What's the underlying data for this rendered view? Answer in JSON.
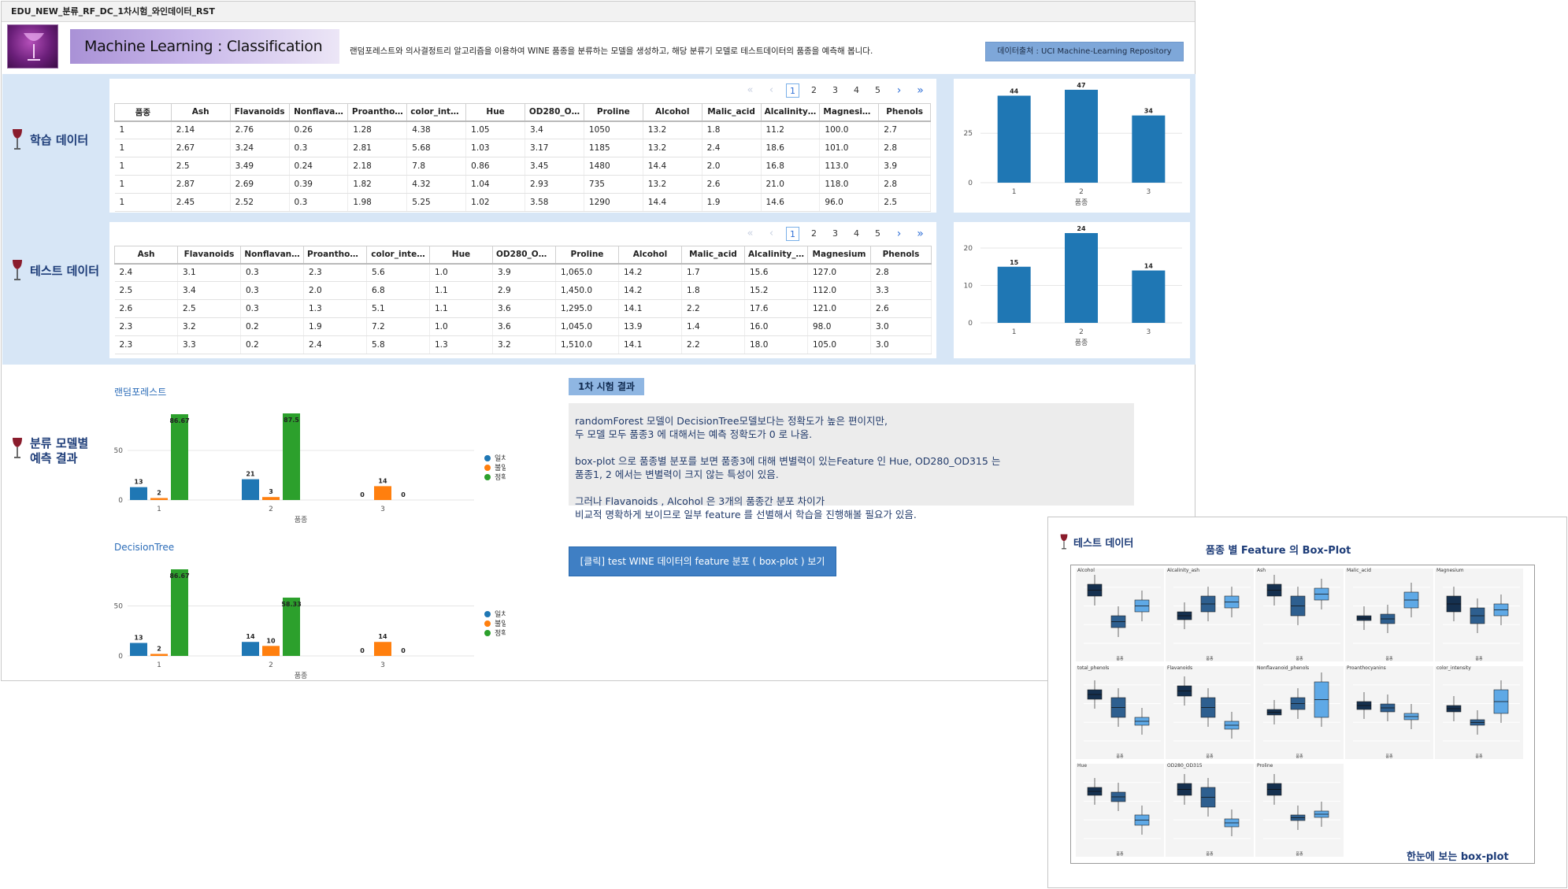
{
  "window": {
    "title": "EDU_NEW_분류_RF_DC_1차시험_와인데이터_RST"
  },
  "header": {
    "banner_text": "Machine Learning :   Classification",
    "description": "랜덤포레스트와 의사결정트리 알고리즘을 이용하여 WINE 품종을 분류하는 모델을 생성하고, 해당 분류기 모델로 테스트데이터의 품종을 예측해 봅니다.",
    "source_button": "데이터출처 : UCI Machine-Learning Repository"
  },
  "train": {
    "label": "학습 데이터",
    "pager": {
      "first": "«",
      "prev": "‹",
      "pages": [
        "1",
        "2",
        "3",
        "4",
        "5"
      ],
      "next": "›",
      "last": "»"
    },
    "columns": [
      "품종",
      "Ash",
      "Flavanoids",
      "Nonflava…",
      "Proantho…",
      "color_inte…",
      "Hue",
      "OD280_O…",
      "Proline",
      "Alcohol",
      "Malic_acid",
      "Alcalinity…",
      "Magnesium",
      "Phenols"
    ],
    "rows": [
      [
        "1",
        "2.14",
        "2.76",
        "0.26",
        "1.28",
        "4.38",
        "1.05",
        "3.4",
        "1050",
        "13.2",
        "1.8",
        "11.2",
        "100.0",
        "2.7"
      ],
      [
        "1",
        "2.67",
        "3.24",
        "0.3",
        "2.81",
        "5.68",
        "1.03",
        "3.17",
        "1185",
        "13.2",
        "2.4",
        "18.6",
        "101.0",
        "2.8"
      ],
      [
        "1",
        "2.5",
        "3.49",
        "0.24",
        "2.18",
        "7.8",
        "0.86",
        "3.45",
        "1480",
        "14.4",
        "2.0",
        "16.8",
        "113.0",
        "3.9"
      ],
      [
        "1",
        "2.87",
        "2.69",
        "0.39",
        "1.82",
        "4.32",
        "1.04",
        "2.93",
        "735",
        "13.2",
        "2.6",
        "21.0",
        "118.0",
        "2.8"
      ],
      [
        "1",
        "2.45",
        "2.52",
        "0.3",
        "1.98",
        "5.25",
        "1.02",
        "3.58",
        "1290",
        "14.4",
        "1.9",
        "14.6",
        "96.0",
        "2.5"
      ]
    ]
  },
  "test": {
    "label": "테스트 데이터",
    "pager": {
      "first": "«",
      "prev": "‹",
      "pages": [
        "1",
        "2",
        "3",
        "4",
        "5"
      ],
      "next": "›",
      "last": "»"
    },
    "columns": [
      "Ash",
      "Flavanoids",
      "Nonflavan…",
      "Proanthoc…",
      "color_inte…",
      "Hue",
      "OD280_OD…",
      "Proline",
      "Alcohol",
      "Malic_acid",
      "Alcalinity_…",
      "Magnesium",
      "Phenols"
    ],
    "rows": [
      [
        "2.4",
        "3.1",
        "0.3",
        "2.3",
        "5.6",
        "1.0",
        "3.9",
        "1,065.0",
        "14.2",
        "1.7",
        "15.6",
        "127.0",
        "2.8"
      ],
      [
        "2.5",
        "3.4",
        "0.3",
        "2.0",
        "6.8",
        "1.1",
        "2.9",
        "1,450.0",
        "14.2",
        "1.8",
        "15.2",
        "112.0",
        "3.3"
      ],
      [
        "2.6",
        "2.5",
        "0.3",
        "1.3",
        "5.1",
        "1.1",
        "3.6",
        "1,295.0",
        "14.1",
        "2.2",
        "17.6",
        "121.0",
        "2.6"
      ],
      [
        "2.3",
        "3.2",
        "0.2",
        "1.9",
        "7.2",
        "1.0",
        "3.6",
        "1,045.0",
        "13.9",
        "1.4",
        "16.0",
        "98.0",
        "3.0"
      ],
      [
        "2.3",
        "3.3",
        "0.2",
        "2.4",
        "5.8",
        "1.3",
        "3.2",
        "1,510.0",
        "14.1",
        "2.2",
        "18.0",
        "105.0",
        "3.0"
      ]
    ]
  },
  "prediction": {
    "label_line1": "분류 모델별",
    "label_line2": "예측 결과",
    "rf_title": "랜덤포레스트",
    "dt_title": "DecisionTree"
  },
  "result": {
    "tag": "1차 시험 결과",
    "p1_l1": "randomForest 모델이 DecisionTree모델보다는 정확도가 높은 편이지만,",
    "p1_l2": "두 모델 모두 품종3 에 대해서는 예측 정확도가 0 로 나옴.",
    "p2_l1": "box-plot 으로 품종별 분포를 보면 품종3에 대해 변별력이 있는Feature 인 Hue, OD280_OD315 는",
    "p2_l2": "품종1, 2 에서는 변별력이 크지 않는 특성이 있음.",
    "p3_l1": "그러나 Flavanoids , Alcohol 은 3개의 품종간 분포 차이가",
    "p3_l2": "비교적 명확하게 보이므로 일부 feature 를 선별해서 학습을 진행해볼 필요가 있음.",
    "click_button": "[클릭] test WINE 데이터의 feature 분포 ( box-plot ) 보기"
  },
  "overlay": {
    "label": "테스트 데이터",
    "title": "품종 별 Feature 의 Box-Plot",
    "footer": "한눈에 보는  box-plot",
    "panels": [
      "Alcohol",
      "Alcalinity_ash",
      "Ash",
      "Malic_acid",
      "Magnesium",
      "total_phenols",
      "Flavanoids",
      "Nonflavanoid_phenols",
      "Proanthocyanins",
      "color_intensity",
      "Hue",
      "OD280_OD315",
      "Proline"
    ],
    "xlabel": "품종"
  },
  "colors": {
    "blue": "#1f77b4",
    "orange": "#ff7f0e",
    "green": "#2ca02c",
    "band": "#d7e6f6"
  },
  "chart_data": [
    {
      "type": "bar",
      "id": "train-dist",
      "categories": [
        "1",
        "2",
        "3"
      ],
      "values": [
        44,
        47,
        34
      ],
      "xlabel": "품종",
      "ylabel": "",
      "ylim": [
        0,
        47
      ],
      "yticks": [
        0,
        25
      ]
    },
    {
      "type": "bar",
      "id": "test-dist",
      "categories": [
        "1",
        "2",
        "3"
      ],
      "values": [
        15,
        24,
        14
      ],
      "xlabel": "품종",
      "ylabel": "",
      "ylim": [
        0,
        24
      ],
      "yticks": [
        0,
        10,
        20
      ]
    },
    {
      "type": "bar",
      "id": "rf-result",
      "title": "랜덤포레스트",
      "categories": [
        "1",
        "2",
        "3"
      ],
      "xlabel": "품종",
      "ylim": [
        0,
        87.5
      ],
      "yticks": [
        0,
        50
      ],
      "series": [
        {
          "name": "일치",
          "values": [
            13,
            21,
            0
          ]
        },
        {
          "name": "불일치",
          "values": [
            2,
            3,
            14
          ]
        },
        {
          "name": "정확도",
          "values": [
            86.67,
            87.5,
            0
          ]
        }
      ],
      "legend": "right"
    },
    {
      "type": "bar",
      "id": "dt-result",
      "title": "DecisionTree",
      "categories": [
        "1",
        "2",
        "3"
      ],
      "xlabel": "품종",
      "ylim": [
        0,
        86.67
      ],
      "yticks": [
        0,
        50
      ],
      "series": [
        {
          "name": "일치",
          "values": [
            13,
            14,
            0
          ]
        },
        {
          "name": "불일치",
          "values": [
            2,
            10,
            14
          ]
        },
        {
          "name": "정확도",
          "values": [
            86.67,
            58.33,
            0
          ]
        }
      ],
      "legend": "right"
    }
  ]
}
